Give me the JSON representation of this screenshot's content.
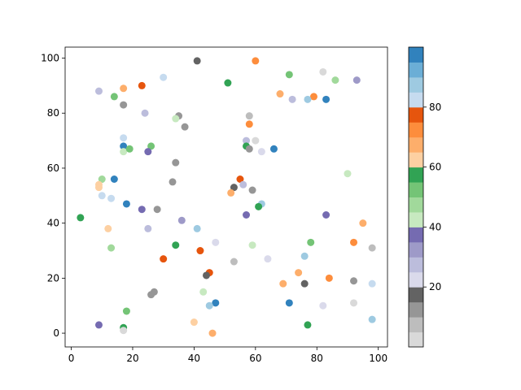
{
  "chart_data": {
    "type": "scatter",
    "x": [
      41,
      60,
      82,
      30,
      71,
      86,
      93,
      51,
      23,
      9,
      17,
      68,
      79,
      72,
      77,
      83,
      14,
      17,
      24,
      35,
      34,
      58,
      37,
      58,
      17,
      57,
      60,
      17,
      17,
      19,
      26,
      25,
      57,
      58,
      62,
      66,
      90,
      34,
      10,
      14,
      9,
      9,
      55,
      33,
      56,
      53,
      52,
      59,
      10,
      13,
      18,
      62,
      61,
      23,
      28,
      57,
      83,
      3,
      36,
      95,
      12,
      25,
      41,
      47,
      59,
      34,
      13,
      78,
      92,
      98,
      42,
      76,
      64,
      30,
      53,
      74,
      45,
      44,
      84,
      92,
      69,
      76,
      98,
      43,
      27,
      26,
      47,
      45,
      71,
      82,
      92,
      18,
      9,
      40,
      77,
      98,
      17,
      17,
      46
    ],
    "y": [
      99,
      99,
      95,
      93,
      94,
      92,
      92,
      91,
      90,
      88,
      89,
      87,
      86,
      85,
      85,
      85,
      86,
      83,
      80,
      79,
      78,
      79,
      75,
      76,
      71,
      70,
      70,
      68,
      66,
      67,
      68,
      66,
      68,
      67,
      66,
      67,
      58,
      62,
      56,
      56,
      54,
      53,
      56,
      55,
      54,
      53,
      51,
      52,
      50,
      49,
      47,
      47,
      46,
      45,
      45,
      43,
      43,
      42,
      41,
      40,
      38,
      38,
      38,
      33,
      32,
      32,
      31,
      33,
      33,
      31,
      30,
      28,
      27,
      27,
      26,
      22,
      22,
      21,
      20,
      19,
      18,
      18,
      18,
      15,
      15,
      14,
      11,
      10,
      11,
      10,
      11,
      8,
      3,
      4,
      3,
      5,
      2,
      1,
      0
    ],
    "c": [
      17,
      72,
      3,
      82,
      52,
      47,
      32,
      58,
      77,
      27,
      67,
      67,
      72,
      27,
      87,
      97,
      52,
      12,
      27,
      13,
      42,
      7,
      12,
      72,
      82,
      27,
      3,
      97,
      42,
      52,
      52,
      37,
      57,
      12,
      22,
      97,
      42,
      12,
      47,
      97,
      62,
      63,
      77,
      13,
      27,
      17,
      67,
      12,
      82,
      82,
      97,
      87,
      57,
      37,
      13,
      37,
      37,
      57,
      32,
      67,
      62,
      27,
      87,
      22,
      42,
      57,
      47,
      52,
      72,
      7,
      77,
      87,
      22,
      77,
      8,
      67,
      77,
      17,
      72,
      13,
      67,
      17,
      82,
      42,
      13,
      13,
      97,
      87,
      97,
      22,
      3,
      52,
      37,
      62,
      57,
      87,
      57,
      3,
      67
    ],
    "colormap": [
      "#d9d9d9",
      "#bdbdbd",
      "#969696",
      "#636363",
      "#dadaeb",
      "#bcbddc",
      "#9e9ac8",
      "#756bb1",
      "#c7e9c0",
      "#a1d99b",
      "#74c476",
      "#31a354",
      "#fdd0a2",
      "#fdae6b",
      "#fd8d3c",
      "#e6550d",
      "#c6dbef",
      "#9ecae1",
      "#6baed6",
      "#3182bd"
    ],
    "clim": [
      0,
      100
    ],
    "cticks": [
      20,
      40,
      60,
      80
    ],
    "xlim": [
      -2,
      103
    ],
    "ylim": [
      -5,
      104
    ],
    "xticks": [
      0,
      20,
      40,
      60,
      80,
      100
    ],
    "yticks": [
      0,
      20,
      40,
      60,
      80,
      100
    ]
  }
}
